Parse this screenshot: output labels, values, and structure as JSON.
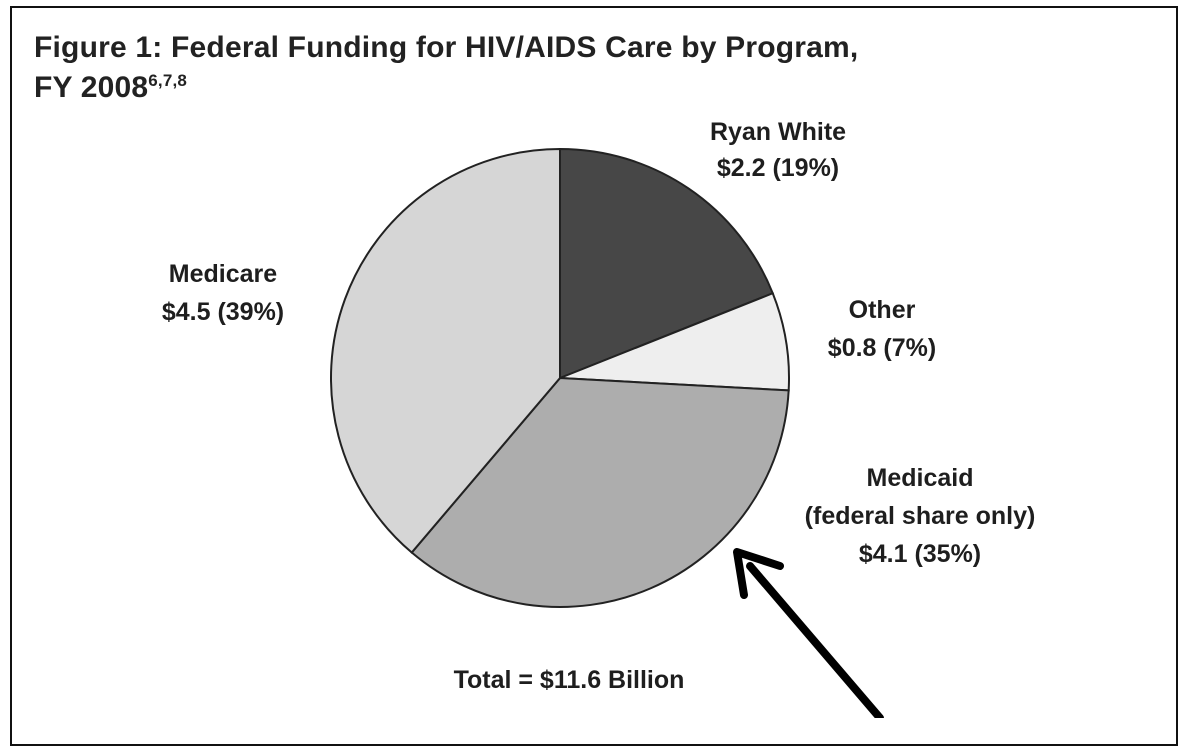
{
  "chart_data": {
    "type": "pie",
    "title": "Figure 1: Federal Funding for HIV/AIDS Care by Program,",
    "title_line2": "FY 2008",
    "title_superscript": "6,7,8",
    "unit": "billions of dollars",
    "total_label": "Total = $11.6 Billion",
    "slices": [
      {
        "name": "Ryan White",
        "value": 2.2,
        "percent": 19,
        "color": "#474747",
        "label_lines": [
          "Ryan White",
          "$2.2 (19%)"
        ]
      },
      {
        "name": "Other",
        "value": 0.8,
        "percent": 7,
        "color": "#eeeeee",
        "label_lines": [
          "Other",
          "$0.8 (7%)"
        ]
      },
      {
        "name": "Medicaid",
        "value": 4.1,
        "percent": 35,
        "color": "#adadad",
        "label_lines": [
          "Medicaid",
          "(federal share only)",
          "$4.1 (35%)"
        ]
      },
      {
        "name": "Medicare",
        "value": 4.5,
        "percent": 39,
        "color": "#d6d6d6",
        "label_lines": [
          "Medicare",
          "$4.5 (39%)"
        ]
      }
    ],
    "annotation": "arrow pointing to Medicaid slice"
  }
}
